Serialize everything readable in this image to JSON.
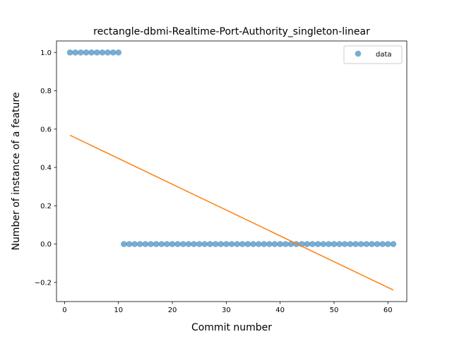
{
  "chart_data": {
    "type": "scatter",
    "title": "rectangle-dbmi-Realtime-Port-Authority_singleton-linear",
    "xlabel": "Commit number",
    "ylabel": "Number of instance of a feature",
    "xlim": [
      -1.5,
      63.5
    ],
    "ylim": [
      -0.3,
      1.06
    ],
    "xticks": [
      0,
      10,
      20,
      30,
      40,
      50,
      60
    ],
    "xtick_labels": [
      "0",
      "10",
      "20",
      "30",
      "40",
      "50",
      "60"
    ],
    "yticks": [
      -0.2,
      0.0,
      0.2,
      0.4,
      0.6,
      0.8,
      1.0
    ],
    "ytick_labels": [
      "−0.2",
      "0.0",
      "0.2",
      "0.4",
      "0.6",
      "0.8",
      "1.0"
    ],
    "grid": false,
    "legend_position": "top-right",
    "series": [
      {
        "name": "data",
        "kind": "scatter",
        "color": "#1f77b4",
        "x": [
          1,
          2,
          3,
          4,
          5,
          6,
          7,
          8,
          9,
          10,
          11,
          12,
          13,
          14,
          15,
          16,
          17,
          18,
          19,
          20,
          21,
          22,
          23,
          24,
          25,
          26,
          27,
          28,
          29,
          30,
          31,
          32,
          33,
          34,
          35,
          36,
          37,
          38,
          39,
          40,
          41,
          42,
          43,
          44,
          45,
          46,
          47,
          48,
          49,
          50,
          51,
          52,
          53,
          54,
          55,
          56,
          57,
          58,
          59,
          60,
          61
        ],
        "y": [
          1,
          1,
          1,
          1,
          1,
          1,
          1,
          1,
          1,
          1,
          0,
          0,
          0,
          0,
          0,
          0,
          0,
          0,
          0,
          0,
          0,
          0,
          0,
          0,
          0,
          0,
          0,
          0,
          0,
          0,
          0,
          0,
          0,
          0,
          0,
          0,
          0,
          0,
          0,
          0,
          0,
          0,
          0,
          0,
          0,
          0,
          0,
          0,
          0,
          0,
          0,
          0,
          0,
          0,
          0,
          0,
          0,
          0,
          0,
          0,
          0
        ]
      },
      {
        "kind": "line",
        "color": "#ff7f0e",
        "x": [
          1,
          61
        ],
        "y": [
          0.568,
          -0.24
        ]
      }
    ]
  }
}
